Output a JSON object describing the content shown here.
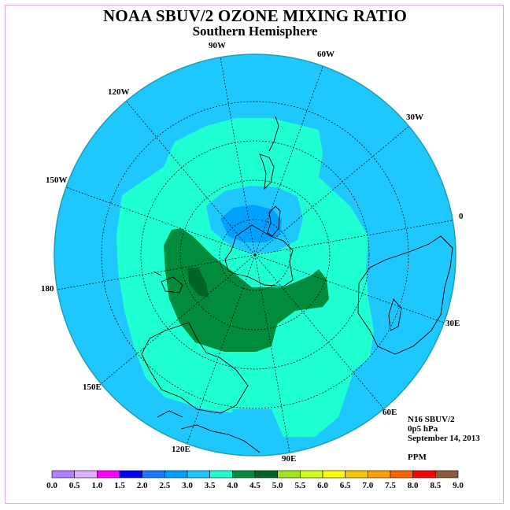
{
  "title": "NOAA SBUV/2 OZONE MIXING RATIO",
  "subtitle": "Southern Hemisphere",
  "longitude_labels": {
    "lon_90W": "90W",
    "lon_60W": "60W",
    "lon_30W": "30W",
    "lon_0": "0",
    "lon_30E": "30E",
    "lon_60E": "60E",
    "lon_90E": "90E",
    "lon_120E": "120E",
    "lon_150E": "150E",
    "lon_180": "180",
    "lon_150W": "150W",
    "lon_120W": "120W"
  },
  "info": {
    "instrument": "N16 SBUV/2",
    "level": "0p5 hPa",
    "date": "September 14, 2013",
    "units": "PPM"
  },
  "colorbar": {
    "ticks": [
      "0.0",
      "0.5",
      "1.0",
      "1.5",
      "2.0",
      "2.5",
      "3.0",
      "3.5",
      "4.0",
      "4.5",
      "5.0",
      "5.5",
      "6.0",
      "6.5",
      "7.0",
      "7.5",
      "8.0",
      "8.5",
      "9.0"
    ],
    "colors": [
      "#b57dff",
      "#e0b0ff",
      "#ff00ff",
      "#0000ff",
      "#1e78ff",
      "#00a0ff",
      "#1ec8ff",
      "#1effd2",
      "#008c3c",
      "#006428",
      "#a0e61e",
      "#d2ff1e",
      "#ffff00",
      "#f0c800",
      "#ffa000",
      "#ff6400",
      "#ff0000",
      "#8c5a3c"
    ]
  },
  "colors": {
    "ocean_background": "#1ec8ff",
    "contour_3_0": "#1ec8ff",
    "contour_3_5": "#1effd2",
    "contour_4_0": "#008c3c",
    "contour_4_5": "#006428",
    "low_center": "#00a0ff",
    "frame": "#d9a8e6"
  }
}
